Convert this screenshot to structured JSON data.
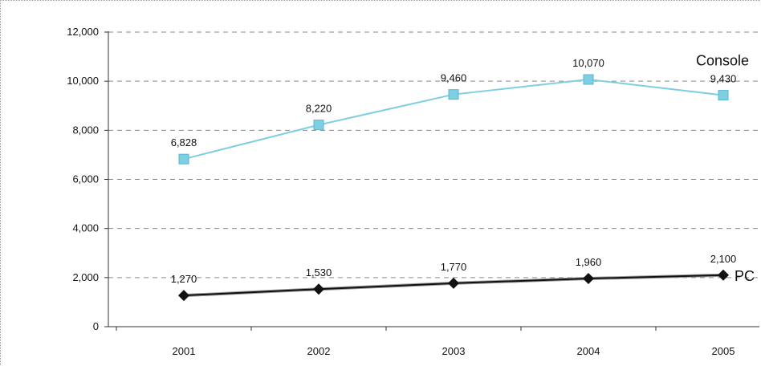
{
  "chart_data": {
    "type": "line",
    "categories": [
      "2001",
      "2002",
      "2003",
      "2004",
      "2005"
    ],
    "ylim": [
      0,
      12000
    ],
    "yticks": [
      0,
      2000,
      4000,
      6000,
      8000,
      10000,
      12000
    ],
    "ytick_labels": [
      "0",
      "2,000",
      "4,000",
      "6,000",
      "8,000",
      "10,000",
      "12,000"
    ],
    "grid": "horizontal dashed",
    "series": [
      {
        "name": "Console",
        "values": [
          6828,
          8220,
          9460,
          10070,
          9430
        ],
        "labels": [
          "6,828",
          "8,220",
          "9,460",
          "10,070",
          "9,430"
        ],
        "color": "#7fcfe3",
        "marker": "square"
      },
      {
        "name": "PC",
        "values": [
          1270,
          1530,
          1770,
          1960,
          2100
        ],
        "labels": [
          "1,270",
          "1,530",
          "1,770",
          "1,960",
          "2,100"
        ],
        "color": "#111111",
        "marker": "diamond"
      }
    ]
  }
}
